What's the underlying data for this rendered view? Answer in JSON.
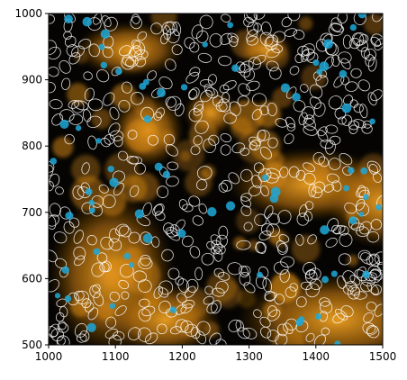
{
  "chart_data": {
    "type": "image",
    "xlim": [
      1000,
      1500
    ],
    "ylim": [
      500,
      1000
    ],
    "xticks": [
      1000,
      1100,
      1200,
      1300,
      1400,
      1500
    ],
    "yticks": [
      500,
      600,
      700,
      800,
      900,
      1000
    ]
  }
}
